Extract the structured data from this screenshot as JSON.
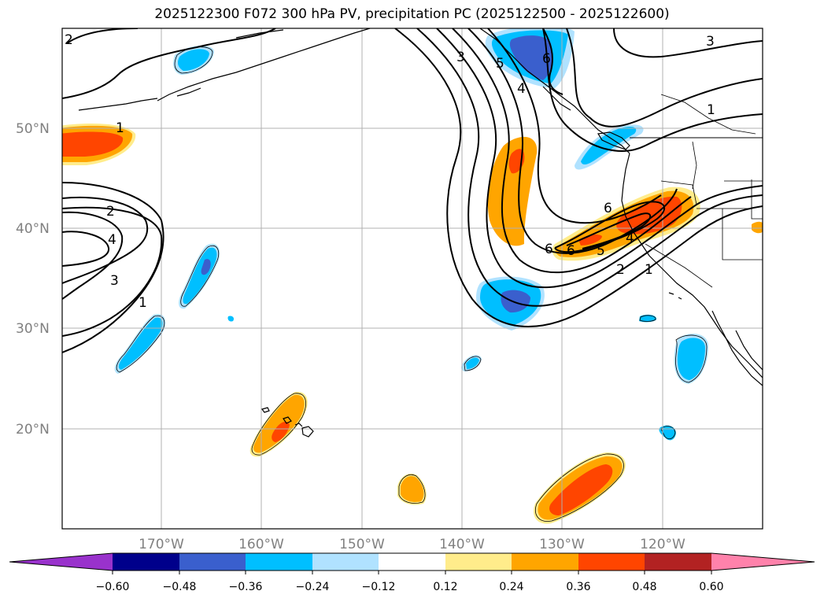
{
  "title": "2025122300 F072 300 hPa PV, precipitation PC (2025122500 - 2025122600)",
  "latitude_labels": [
    "50°N",
    "40°N",
    "30°N",
    "20°N"
  ],
  "longitude_labels": [
    "170°W",
    "160°W",
    "150°W",
    "140°W",
    "130°W",
    "120°W"
  ],
  "colorbar": {
    "ticks": [
      "−0.60",
      "−0.48",
      "−0.36",
      "−0.24",
      "−0.12",
      "0.12",
      "0.24",
      "0.36",
      "0.48",
      "0.60"
    ],
    "colors": [
      "#9932cc",
      "#00008b",
      "#3a5fcd",
      "#00bfff",
      "#b0e2ff",
      "#ffffff",
      "#ffec8b",
      "#ffa500",
      "#ff4500",
      "#b22222",
      "#ff82ab"
    ]
  },
  "pv_contour_labels": [
    "1",
    "2",
    "3",
    "4",
    "5",
    "6"
  ],
  "colors": {
    "grid": "#b0b0b0",
    "coast": "#000000",
    "contour": "#000000"
  }
}
